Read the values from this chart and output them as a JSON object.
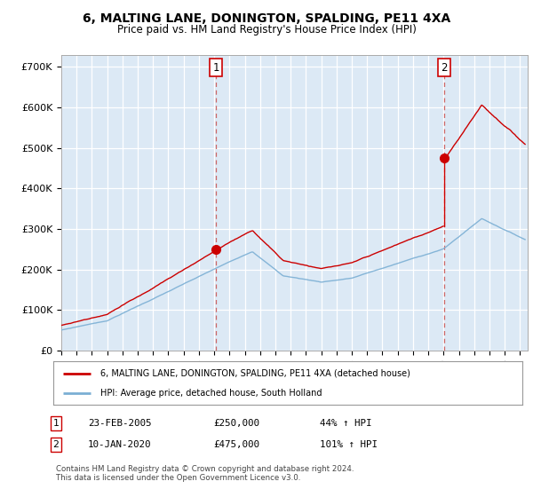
{
  "title": "6, MALTING LANE, DONINGTON, SPALDING, PE11 4XA",
  "subtitle": "Price paid vs. HM Land Registry's House Price Index (HPI)",
  "ylabel_ticks": [
    "£0",
    "£100K",
    "£200K",
    "£300K",
    "£400K",
    "£500K",
    "£600K",
    "£700K"
  ],
  "ytick_values": [
    0,
    100000,
    200000,
    300000,
    400000,
    500000,
    600000,
    700000
  ],
  "ylim": [
    0,
    730000
  ],
  "xlim_start": 1995.0,
  "xlim_end": 2025.5,
  "red_line_color": "#cc0000",
  "blue_line_color": "#7bafd4",
  "dashed_line_color": "#cc6666",
  "purchase1_x": 2005.12,
  "purchase1_y": 250000,
  "purchase1_label": "1",
  "purchase2_x": 2020.04,
  "purchase2_y": 475000,
  "purchase2_label": "2",
  "legend_line1": "6, MALTING LANE, DONINGTON, SPALDING, PE11 4XA (detached house)",
  "legend_line2": "HPI: Average price, detached house, South Holland",
  "footnote_label1": "1",
  "footnote_date1": "23-FEB-2005",
  "footnote_price1": "£250,000",
  "footnote_pct1": "44% ↑ HPI",
  "footnote_label2": "2",
  "footnote_date2": "10-JAN-2020",
  "footnote_price2": "£475,000",
  "footnote_pct2": "101% ↑ HPI",
  "footnote_copyright": "Contains HM Land Registry data © Crown copyright and database right 2024.\nThis data is licensed under the Open Government Licence v3.0.",
  "plot_bg_color": "#dce9f5",
  "fig_bg_color": "#ffffff"
}
